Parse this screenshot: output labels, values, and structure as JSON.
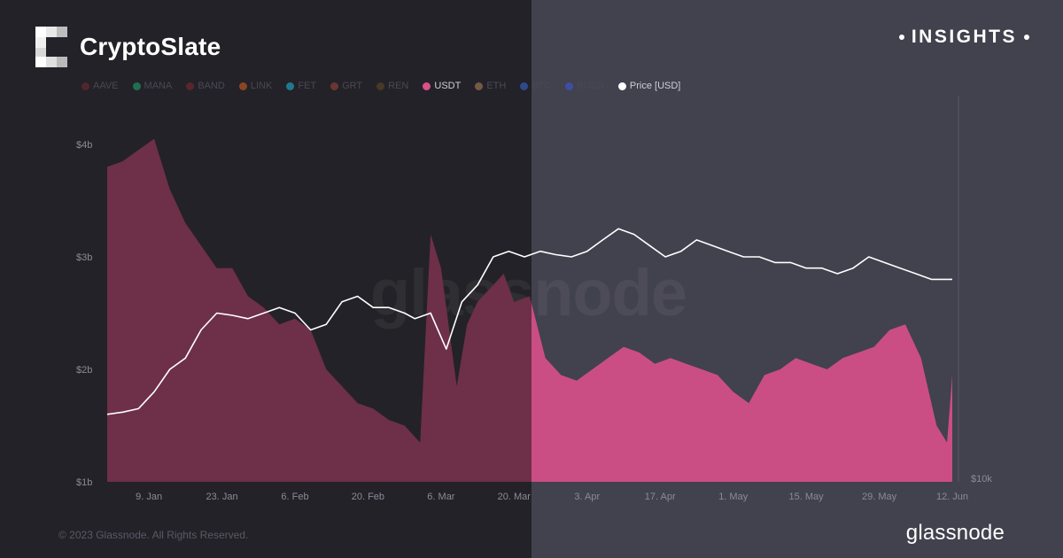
{
  "brand": {
    "name": "CryptoSlate",
    "icon": "cryptoslate-logo-icon"
  },
  "badge": {
    "text": "INSIGHTS"
  },
  "watermark": "glassnode",
  "footer": {
    "copyright": "© 2023 Glassnode. All Rights Reserved.",
    "logo_text": "glassnode"
  },
  "colors": {
    "left_panel": "#232228",
    "right_panel": "#42414e",
    "usdt": "#d9508a",
    "price": "#ffffff"
  },
  "legend": [
    {
      "label": "AAVE",
      "color": "#7a2a30",
      "active": false
    },
    {
      "label": "MANA",
      "color": "#1fae6f",
      "active": false
    },
    {
      "label": "BAND",
      "color": "#8a2a2a",
      "active": false
    },
    {
      "label": "LINK",
      "color": "#e0641a",
      "active": false
    },
    {
      "label": "FET",
      "color": "#20c0e0",
      "active": false
    },
    {
      "label": "GRT",
      "color": "#a04a38",
      "active": false
    },
    {
      "label": "REN",
      "color": "#6a4a28",
      "active": false
    },
    {
      "label": "USDT",
      "color": "#d9508a",
      "active": true
    },
    {
      "label": "ETH",
      "color": "#b8885a",
      "active": false
    },
    {
      "label": "BTC",
      "color": "#3a6ae0",
      "active": false
    },
    {
      "label": "BUSD",
      "color": "#3a5ae8",
      "active": false
    },
    {
      "label": "Price [USD]",
      "color": "#ffffff",
      "active": true
    }
  ],
  "chart_data": {
    "type": "area",
    "x_ticks": [
      "9. Jan",
      "23. Jan",
      "6. Feb",
      "20. Feb",
      "6. Mar",
      "20. Mar",
      "3. Apr",
      "17. Apr",
      "1. May",
      "15. May",
      "29. May",
      "12. Jun"
    ],
    "y_ticks": [
      "$4b",
      "$3b",
      "$2b",
      "$1b"
    ],
    "y_right_ticks": [
      "$10k"
    ],
    "ylim": [
      1,
      4
    ],
    "grid": false,
    "legend_position": "top",
    "series": [
      {
        "name": "USDT",
        "type": "area",
        "unit": "USD billions",
        "x": [
          "2023-01-01",
          "2023-01-04",
          "2023-01-07",
          "2023-01-10",
          "2023-01-13",
          "2023-01-16",
          "2023-01-19",
          "2023-01-22",
          "2023-01-25",
          "2023-01-28",
          "2023-01-31",
          "2023-02-03",
          "2023-02-06",
          "2023-02-09",
          "2023-02-12",
          "2023-02-15",
          "2023-02-18",
          "2023-02-21",
          "2023-02-24",
          "2023-02-27",
          "2023-03-01",
          "2023-03-02",
          "2023-03-04",
          "2023-03-06",
          "2023-03-09",
          "2023-03-11",
          "2023-03-13",
          "2023-03-15",
          "2023-03-18",
          "2023-03-20",
          "2023-03-23",
          "2023-03-26",
          "2023-03-29",
          "2023-04-01",
          "2023-04-04",
          "2023-04-07",
          "2023-04-10",
          "2023-04-13",
          "2023-04-16",
          "2023-04-19",
          "2023-04-22",
          "2023-04-25",
          "2023-04-28",
          "2023-05-01",
          "2023-05-04",
          "2023-05-07",
          "2023-05-10",
          "2023-05-13",
          "2023-05-16",
          "2023-05-19",
          "2023-05-22",
          "2023-05-25",
          "2023-05-28",
          "2023-05-31",
          "2023-06-03",
          "2023-06-06",
          "2023-06-09",
          "2023-06-11",
          "2023-06-12"
        ],
        "values": [
          3.8,
          3.85,
          3.95,
          4.05,
          3.6,
          3.3,
          3.1,
          2.9,
          2.9,
          2.65,
          2.55,
          2.4,
          2.45,
          2.35,
          2.0,
          1.85,
          1.7,
          1.65,
          1.55,
          1.5,
          1.4,
          1.35,
          3.2,
          2.9,
          1.85,
          2.4,
          2.6,
          2.7,
          2.85,
          2.6,
          2.65,
          2.1,
          1.95,
          1.9,
          2.0,
          2.1,
          2.2,
          2.15,
          2.05,
          2.1,
          2.05,
          2.0,
          1.95,
          1.8,
          1.7,
          1.95,
          2.0,
          2.1,
          2.05,
          2.0,
          2.1,
          2.15,
          2.2,
          2.35,
          2.4,
          2.1,
          1.5,
          1.35,
          1.95
        ]
      },
      {
        "name": "Price [USD]",
        "type": "line",
        "unit": "USD (relative scale)",
        "x": [
          "2023-01-01",
          "2023-01-04",
          "2023-01-07",
          "2023-01-10",
          "2023-01-13",
          "2023-01-16",
          "2023-01-19",
          "2023-01-22",
          "2023-01-25",
          "2023-01-28",
          "2023-01-31",
          "2023-02-03",
          "2023-02-06",
          "2023-02-09",
          "2023-02-12",
          "2023-02-15",
          "2023-02-18",
          "2023-02-21",
          "2023-02-24",
          "2023-02-27",
          "2023-03-01",
          "2023-03-04",
          "2023-03-07",
          "2023-03-10",
          "2023-03-13",
          "2023-03-16",
          "2023-03-19",
          "2023-03-22",
          "2023-03-25",
          "2023-03-28",
          "2023-03-31",
          "2023-04-03",
          "2023-04-06",
          "2023-04-09",
          "2023-04-12",
          "2023-04-15",
          "2023-04-18",
          "2023-04-21",
          "2023-04-24",
          "2023-04-27",
          "2023-04-30",
          "2023-05-03",
          "2023-05-06",
          "2023-05-09",
          "2023-05-12",
          "2023-05-15",
          "2023-05-18",
          "2023-05-21",
          "2023-05-24",
          "2023-05-27",
          "2023-05-30",
          "2023-06-02",
          "2023-06-05",
          "2023-06-08",
          "2023-06-12"
        ],
        "values": [
          1.6,
          1.62,
          1.65,
          1.8,
          2.0,
          2.1,
          2.35,
          2.5,
          2.48,
          2.45,
          2.5,
          2.55,
          2.5,
          2.35,
          2.4,
          2.6,
          2.65,
          2.55,
          2.55,
          2.5,
          2.45,
          2.5,
          2.18,
          2.6,
          2.75,
          3.0,
          3.05,
          3.0,
          3.05,
          3.02,
          3.0,
          3.05,
          3.15,
          3.25,
          3.2,
          3.1,
          3.0,
          3.05,
          3.15,
          3.1,
          3.05,
          3.0,
          3.0,
          2.95,
          2.95,
          2.9,
          2.9,
          2.85,
          2.9,
          3.0,
          2.95,
          2.9,
          2.85,
          2.8,
          2.8
        ]
      }
    ]
  }
}
